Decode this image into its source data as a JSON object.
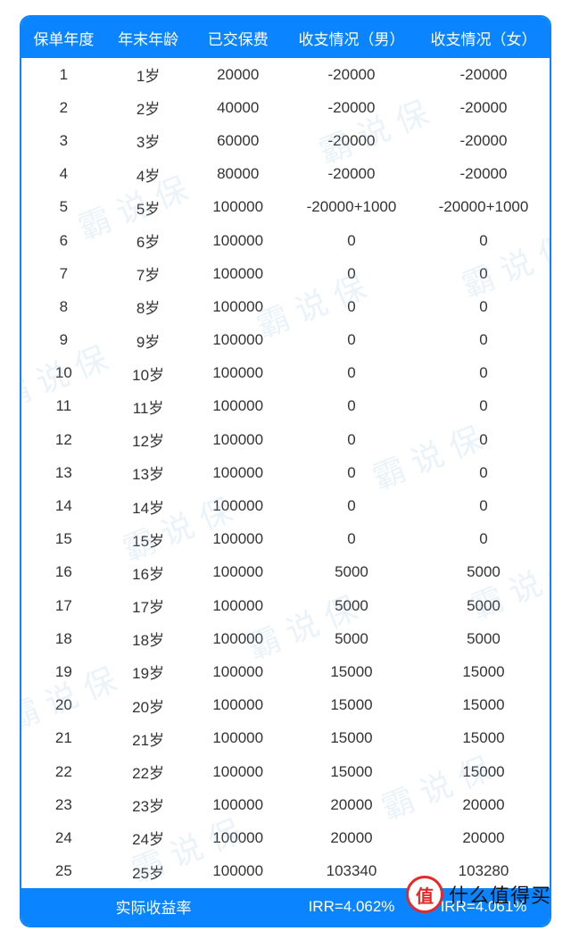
{
  "table": {
    "header_bg": "#0a84ff",
    "header_text_color": "#ffffff",
    "border_color": "#0a84ff",
    "cell_text_color": "#333333",
    "font_size": 17,
    "columns": [
      "保单年度",
      "年末年龄",
      "已交保费",
      "收支情况（男）",
      "收支情况（女）"
    ],
    "rows": [
      [
        "1",
        "1岁",
        "20000",
        "-20000",
        "-20000"
      ],
      [
        "2",
        "2岁",
        "40000",
        "-20000",
        "-20000"
      ],
      [
        "3",
        "3岁",
        "60000",
        "-20000",
        "-20000"
      ],
      [
        "4",
        "4岁",
        "80000",
        "-20000",
        "-20000"
      ],
      [
        "5",
        "5岁",
        "100000",
        "-20000+1000",
        "-20000+1000"
      ],
      [
        "6",
        "6岁",
        "100000",
        "0",
        "0"
      ],
      [
        "7",
        "7岁",
        "100000",
        "0",
        "0"
      ],
      [
        "8",
        "8岁",
        "100000",
        "0",
        "0"
      ],
      [
        "9",
        "9岁",
        "100000",
        "0",
        "0"
      ],
      [
        "10",
        "10岁",
        "100000",
        "0",
        "0"
      ],
      [
        "11",
        "11岁",
        "100000",
        "0",
        "0"
      ],
      [
        "12",
        "12岁",
        "100000",
        "0",
        "0"
      ],
      [
        "13",
        "13岁",
        "100000",
        "0",
        "0"
      ],
      [
        "14",
        "14岁",
        "100000",
        "0",
        "0"
      ],
      [
        "15",
        "15岁",
        "100000",
        "0",
        "0"
      ],
      [
        "16",
        "16岁",
        "100000",
        "5000",
        "5000"
      ],
      [
        "17",
        "17岁",
        "100000",
        "5000",
        "5000"
      ],
      [
        "18",
        "18岁",
        "100000",
        "5000",
        "5000"
      ],
      [
        "19",
        "19岁",
        "100000",
        "15000",
        "15000"
      ],
      [
        "20",
        "20岁",
        "100000",
        "15000",
        "15000"
      ],
      [
        "21",
        "21岁",
        "100000",
        "15000",
        "15000"
      ],
      [
        "22",
        "22岁",
        "100000",
        "15000",
        "15000"
      ],
      [
        "23",
        "23岁",
        "100000",
        "20000",
        "20000"
      ],
      [
        "24",
        "24岁",
        "100000",
        "20000",
        "20000"
      ],
      [
        "25",
        "25岁",
        "100000",
        "103340",
        "103280"
      ]
    ],
    "footer": {
      "label": "实际收益率",
      "irr_male": "IRR=4.062%",
      "irr_female": "IRR=4.061%"
    }
  },
  "watermark": {
    "text": "霸 说 保",
    "color": "rgba(150,195,230,0.20)",
    "font_size": 36,
    "rotate_deg": -22,
    "positions": [
      [
        60,
        140
      ],
      [
        330,
        55
      ],
      [
        -30,
        330
      ],
      [
        260,
        250
      ],
      [
        490,
        205
      ],
      [
        110,
        500
      ],
      [
        390,
        420
      ],
      [
        -20,
        690
      ],
      [
        250,
        610
      ],
      [
        500,
        565
      ],
      [
        120,
        860
      ],
      [
        400,
        790
      ]
    ]
  },
  "smzdm": {
    "circle_char": "值",
    "text": "什么值得买",
    "accent_color": "#e62828"
  }
}
